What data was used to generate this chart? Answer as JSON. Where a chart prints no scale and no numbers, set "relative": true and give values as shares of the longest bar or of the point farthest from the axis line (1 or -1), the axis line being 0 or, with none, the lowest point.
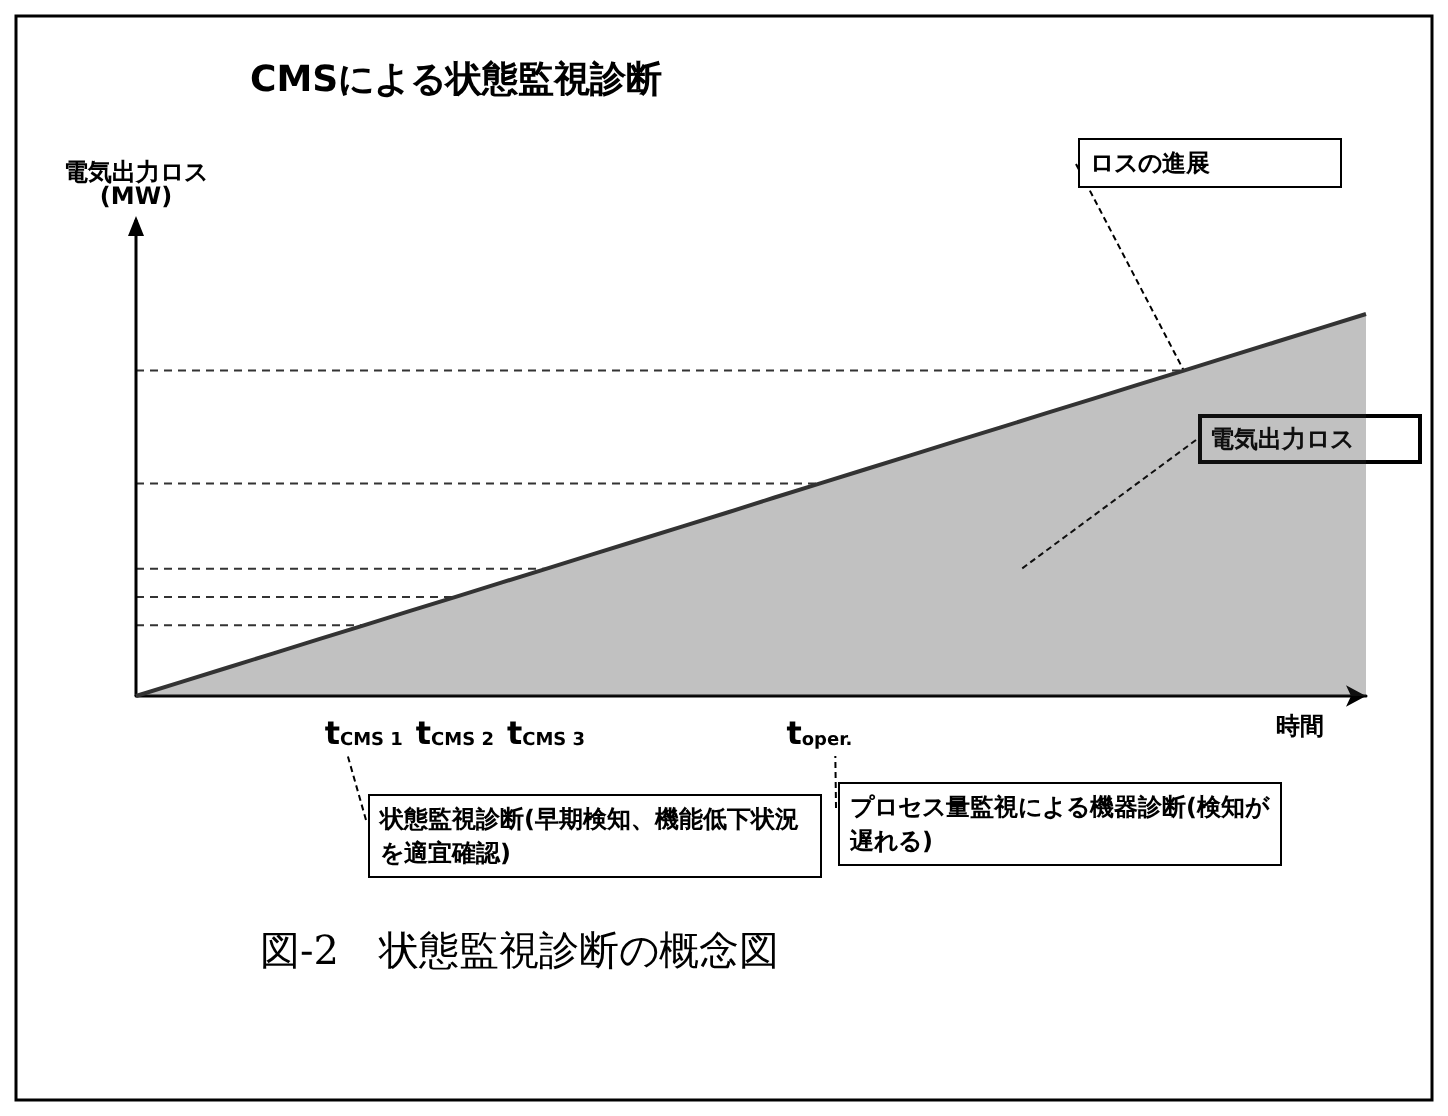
{
  "chart_data": {
    "type": "area",
    "relative": true,
    "title": "CMSによる状態監視診断",
    "ylabel": "電気出力ロス\n(MW)",
    "xlabel": "時間",
    "categories": [
      null,
      null,
      null,
      null,
      null,
      "t$_{CMS 1}$",
      null,
      "t$_{CMS 2}$",
      null,
      "t$_{CMS 3}$",
      null,
      null,
      null,
      null,
      null,
      "t$_{oper.}$",
      null,
      null,
      null,
      null,
      null,
      null,
      null,
      null,
      null,
      null,
      null,
      null
    ],
    "series": [
      {
        "color": "#333333",
        "values": [
          0,
          0.037,
          0.074,
          0.111,
          0.148,
          0.185,
          0.222,
          0.259,
          0.296,
          0.333,
          0.37,
          0.407,
          0.444,
          0.481,
          0.519,
          0.556,
          0.593,
          0.63,
          0.667,
          0.704,
          0.741,
          0.778,
          0.815,
          0.852,
          0.889,
          0.926,
          0.963,
          1
        ]
      }
    ],
    "ref_lines": [
      {
        "axis": "y",
        "value": 0.185,
        "line_style": "dashed"
      },
      {
        "axis": "y",
        "value": 0.259,
        "line_style": "dashed"
      },
      {
        "axis": "y",
        "value": 0.333,
        "line_style": "dashed"
      },
      {
        "axis": "y",
        "value": 0.556,
        "line_style": "dashed"
      },
      {
        "axis": "y",
        "value": 0.852,
        "line_style": "dashed"
      }
    ],
    "annotations": [
      "ロスの進展",
      "電気出力ロス",
      "状態監視診断(早期検知、機能低下状況を適宜確認)",
      "プロセス量監視による機器診断(検知が遅れる)",
      "図-2　状態監視診断の概念図"
    ],
    "grid": false,
    "marker": "none"
  }
}
